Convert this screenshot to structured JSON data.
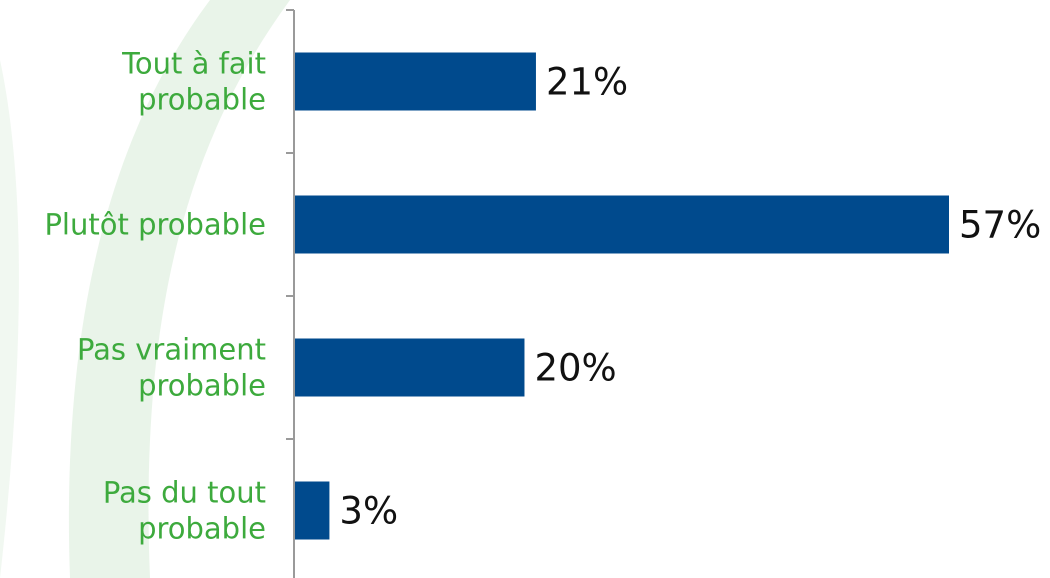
{
  "colors": {
    "bar": "#004A8D",
    "label": "#3DAA3D",
    "value": "#111111",
    "axis": "#9A9A9A",
    "swoosh": "#E7F3E7"
  },
  "chart_data": {
    "type": "bar",
    "orientation": "horizontal",
    "categories": [
      [
        "Tout à fait",
        "probable"
      ],
      [
        "Plutôt  probable"
      ],
      [
        "Pas vraiment",
        "probable"
      ],
      [
        "Pas du tout",
        "probable"
      ]
    ],
    "values": [
      21,
      57,
      20,
      3
    ],
    "value_labels": [
      "21%",
      "57%",
      "20%",
      "3%"
    ],
    "unit": "%",
    "xlim": [
      0,
      57
    ],
    "grid": false,
    "legend": "none"
  }
}
